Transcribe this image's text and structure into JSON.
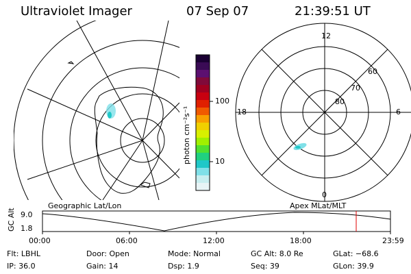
{
  "header": {
    "instrument": "Ultraviolet Imager",
    "date": "07 Sep 07",
    "time": "21:39:51 UT"
  },
  "colorbar": {
    "unit_label": "photon cm⁻²s⁻¹",
    "ticks": [
      "100",
      "10"
    ],
    "colors": [
      "#1a0033",
      "#3a0b55",
      "#5c1070",
      "#800a3a",
      "#a00020",
      "#c80010",
      "#e02000",
      "#f05a00",
      "#f8a000",
      "#f0d000",
      "#d8f000",
      "#a0f000",
      "#50e030",
      "#20d080",
      "#20c8c8",
      "#80e0e8",
      "#c8eef0",
      "#e8f4f6"
    ]
  },
  "left_map": {
    "label": "Geographic Lat/Lon"
  },
  "right_map": {
    "label": "Apex  MLat/MLT",
    "mlt_labels": [
      "12",
      "18",
      "6",
      "0"
    ],
    "lat_labels": [
      "60",
      "70",
      "80"
    ]
  },
  "timeline": {
    "axis_label": "GC Alt",
    "y_ticks": [
      "9.0",
      "1.8"
    ],
    "x_ticks": [
      "00:00",
      "06:00",
      "12:00",
      "18:00",
      "23:59"
    ],
    "cursor_color": "#e00000"
  },
  "info": {
    "flt": "Flt: LBHL",
    "ip": "IP: 36.0",
    "door": "Door: Open",
    "gain": "Gain: 14",
    "mode": "Mode: Normal",
    "dsp": "Dsp:     1.9",
    "gcalt": "GC Alt: 8.0 Re",
    "seq": "Seq: 39",
    "glat": "GLat:  −68.6",
    "glon": "GLon:   39.9"
  }
}
